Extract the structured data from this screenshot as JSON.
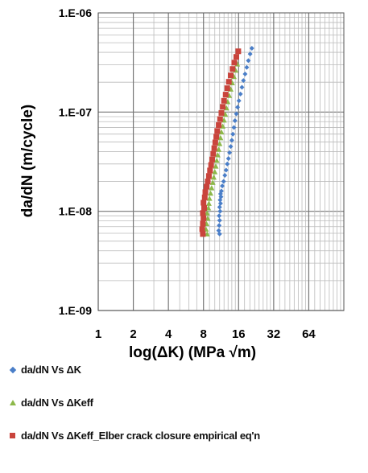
{
  "chart_data": {
    "type": "scatter",
    "xlabel": "log(ΔK)     (MPa √m)",
    "ylabel": "da/dN (m/cycle)",
    "x_scale": "log2",
    "y_scale": "log10",
    "xlim": [
      1,
      128
    ],
    "ylim": [
      1e-09,
      1e-06
    ],
    "x_tick_values": [
      1,
      2,
      4,
      8,
      16,
      32,
      64
    ],
    "x_tick_labels": [
      "1",
      "2",
      "4",
      "8",
      "16",
      "32",
      "64"
    ],
    "y_tick_values": [
      1e-06,
      1e-07,
      1e-08,
      1e-09
    ],
    "y_tick_labels": [
      "1.E-06",
      "1.E-07",
      "1.E-08",
      "1.E-09"
    ],
    "grid": true,
    "legend_position": "bottom",
    "series": [
      {
        "name": "da/dN Vs ΔK",
        "marker": "diamond",
        "color": "#4a7ec8",
        "points": [
          [
            11.0,
            5.9e-09
          ],
          [
            10.8,
            6.4e-09
          ],
          [
            10.9,
            7.2e-09
          ],
          [
            11.0,
            8.1e-09
          ],
          [
            10.9,
            9e-09
          ],
          [
            11.1,
            1e-08
          ],
          [
            11.0,
            1.1e-08
          ],
          [
            11.2,
            1.2e-08
          ],
          [
            11.1,
            1.3e-08
          ],
          [
            11.3,
            1.4e-08
          ],
          [
            11.2,
            1.5e-08
          ],
          [
            11.4,
            1.6e-08
          ],
          [
            11.6,
            1.8e-08
          ],
          [
            11.9,
            2e-08
          ],
          [
            12.2,
            2.3e-08
          ],
          [
            12.5,
            2.6e-08
          ],
          [
            12.8,
            3e-08
          ],
          [
            13.1,
            3.4e-08
          ],
          [
            13.4,
            3.9e-08
          ],
          [
            13.7,
            4.5e-08
          ],
          [
            14.0,
            5.2e-08
          ],
          [
            14.3,
            6e-08
          ],
          [
            14.6,
            7e-08
          ],
          [
            14.9,
            8.2e-08
          ],
          [
            15.3,
            9.6e-08
          ],
          [
            15.7,
            1.12e-07
          ],
          [
            16.1,
            1.3e-07
          ],
          [
            16.6,
            1.52e-07
          ],
          [
            17.1,
            1.78e-07
          ],
          [
            17.6,
            2.08e-07
          ],
          [
            18.2,
            2.42e-07
          ],
          [
            18.8,
            2.82e-07
          ],
          [
            19.4,
            3.3e-07
          ],
          [
            20.1,
            3.85e-07
          ],
          [
            20.8,
            4.4e-07
          ]
        ]
      },
      {
        "name": "da/dN Vs ΔKeff",
        "marker": "triangle",
        "color": "#8db84a",
        "points": [
          [
            8.6,
            5.9e-09
          ],
          [
            8.4,
            6.6e-09
          ],
          [
            8.5,
            7.5e-09
          ],
          [
            8.7,
            8.5e-09
          ],
          [
            8.6,
            9.6e-09
          ],
          [
            8.8,
            1.08e-08
          ],
          [
            8.9,
            1.2e-08
          ],
          [
            9.0,
            1.35e-08
          ],
          [
            9.2,
            1.52e-08
          ],
          [
            9.4,
            1.72e-08
          ],
          [
            9.6,
            1.95e-08
          ],
          [
            9.8,
            2.2e-08
          ],
          [
            10.0,
            2.5e-08
          ],
          [
            10.2,
            2.85e-08
          ],
          [
            10.4,
            3.25e-08
          ],
          [
            10.6,
            3.7e-08
          ],
          [
            10.8,
            4.2e-08
          ],
          [
            11.0,
            4.8e-08
          ],
          [
            11.2,
            5.5e-08
          ],
          [
            11.4,
            6.3e-08
          ],
          [
            11.7,
            7.2e-08
          ],
          [
            12.0,
            8.3e-08
          ],
          [
            12.3,
            9.5e-08
          ],
          [
            12.6,
            1.1e-07
          ],
          [
            12.9,
            1.27e-07
          ],
          [
            13.3,
            1.47e-07
          ],
          [
            13.7,
            1.7e-07
          ],
          [
            14.1,
            1.97e-07
          ],
          [
            14.6,
            2.28e-07
          ],
          [
            15.1,
            2.64e-07
          ],
          [
            15.6,
            3.05e-07
          ]
        ]
      },
      {
        "name": "da/dN Vs ΔKeff_Elber crack closure empirical eq'n",
        "marker": "square",
        "color": "#c9443c",
        "points": [
          [
            7.9,
            5.9e-09
          ],
          [
            7.8,
            6.6e-09
          ],
          [
            7.9,
            7.5e-09
          ],
          [
            8.0,
            8.5e-09
          ],
          [
            7.9,
            9.6e-09
          ],
          [
            8.1,
            1.08e-08
          ],
          [
            8.0,
            1.22e-08
          ],
          [
            8.2,
            1.38e-08
          ],
          [
            8.3,
            1.56e-08
          ],
          [
            8.5,
            1.77e-08
          ],
          [
            8.7,
            2e-08
          ],
          [
            8.9,
            2.27e-08
          ],
          [
            9.1,
            2.58e-08
          ],
          [
            9.3,
            2.93e-08
          ],
          [
            9.5,
            3.33e-08
          ],
          [
            9.7,
            3.8e-08
          ],
          [
            9.9,
            4.33e-08
          ],
          [
            10.1,
            4.95e-08
          ],
          [
            10.3,
            5.65e-08
          ],
          [
            10.5,
            6.45e-08
          ],
          [
            10.8,
            7.4e-08
          ],
          [
            11.1,
            8.5e-08
          ],
          [
            11.4,
            9.8e-08
          ],
          [
            11.7,
            1.13e-07
          ],
          [
            12.0,
            1.3e-07
          ],
          [
            12.4,
            1.5e-07
          ],
          [
            12.8,
            1.74e-07
          ],
          [
            13.2,
            2.02e-07
          ],
          [
            13.7,
            2.34e-07
          ],
          [
            14.2,
            2.72e-07
          ],
          [
            14.7,
            3.15e-07
          ],
          [
            15.3,
            3.6e-07
          ],
          [
            15.9,
            4.1e-07
          ]
        ]
      }
    ]
  }
}
